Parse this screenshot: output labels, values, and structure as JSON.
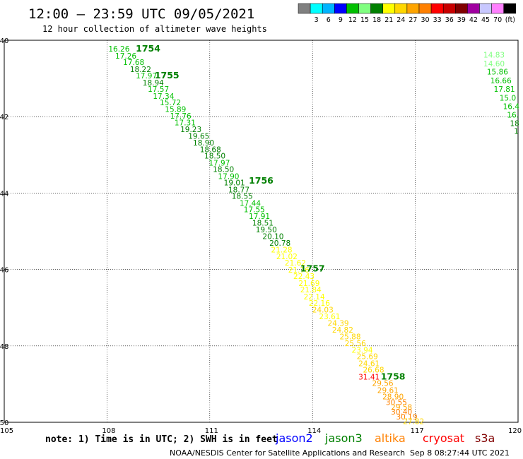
{
  "title": "12:00 – 23:59 UTC 09/05/2021",
  "subtitle": "12 hour collection of altimeter wave heights",
  "colorbar": {
    "colors": [
      "#808080",
      "#00ffff",
      "#00b4ff",
      "#0000ff",
      "#00c000",
      "#80ff80",
      "#008000",
      "#ffff00",
      "#ffd700",
      "#ffa500",
      "#ff8000",
      "#ff0000",
      "#c80000",
      "#800000",
      "#a000a0",
      "#c8c8ff",
      "#ff80ff",
      "#000000"
    ],
    "labels": [
      "3",
      "6",
      "9",
      "12",
      "15",
      "18",
      "21",
      "24",
      "27",
      "30",
      "33",
      "36",
      "39",
      "42",
      "45",
      "70"
    ],
    "unit": "(ft)"
  },
  "chart_data": {
    "type": "scatter",
    "title": "12:00 – 23:59 UTC 09/05/2021",
    "subtitle": "12 hour collection of altimeter wave heights",
    "xlim": [
      105,
      120
    ],
    "ylim": [
      -50,
      -40
    ],
    "xticks": [
      "105",
      "108",
      "111",
      "114",
      "117",
      "120"
    ],
    "yticks": [
      "-40",
      "-42",
      "-44",
      "-46",
      "-48",
      "-50"
    ],
    "grid": true,
    "series": [
      {
        "name": "track1",
        "points": [
          {
            "x": 108.35,
            "y": -40.3,
            "v": "16.26",
            "c": "#00c000"
          },
          {
            "x": 108.55,
            "y": -40.48,
            "v": "17.26",
            "c": "#00c000"
          },
          {
            "x": 108.78,
            "y": -40.65,
            "v": "17.68",
            "c": "#00c000"
          },
          {
            "x": 108.98,
            "y": -40.83,
            "v": "18.22",
            "c": "#008000"
          },
          {
            "x": 109.15,
            "y": -41.0,
            "v": "17.97",
            "c": "#00c000"
          },
          {
            "x": 109.35,
            "y": -41.18,
            "v": "18.94",
            "c": "#008000"
          },
          {
            "x": 109.5,
            "y": -41.35,
            "v": "17.57",
            "c": "#00c000"
          },
          {
            "x": 109.65,
            "y": -41.53,
            "v": "17.34",
            "c": "#00c000"
          },
          {
            "x": 109.85,
            "y": -41.7,
            "v": "15.72",
            "c": "#00c000"
          },
          {
            "x": 110.0,
            "y": -41.88,
            "v": "15.89",
            "c": "#00c000"
          },
          {
            "x": 110.15,
            "y": -42.05,
            "v": "17.76",
            "c": "#00c000"
          },
          {
            "x": 110.28,
            "y": -42.23,
            "v": "17.31",
            "c": "#00c000"
          },
          {
            "x": 110.45,
            "y": -42.4,
            "v": "19.23",
            "c": "#008000"
          },
          {
            "x": 110.68,
            "y": -42.58,
            "v": "19.65",
            "c": "#008000"
          },
          {
            "x": 110.82,
            "y": -42.75,
            "v": "18.90",
            "c": "#008000"
          },
          {
            "x": 111.02,
            "y": -42.93,
            "v": "18.68",
            "c": "#008000"
          },
          {
            "x": 111.15,
            "y": -43.1,
            "v": "18.50",
            "c": "#008000"
          },
          {
            "x": 111.28,
            "y": -43.28,
            "v": "17.97",
            "c": "#00c000"
          },
          {
            "x": 111.4,
            "y": -43.45,
            "v": "18.50",
            "c": "#008000"
          },
          {
            "x": 111.55,
            "y": -43.63,
            "v": "17.90",
            "c": "#00c000"
          },
          {
            "x": 111.72,
            "y": -43.8,
            "v": "19.01",
            "c": "#008000"
          },
          {
            "x": 111.85,
            "y": -43.98,
            "v": "18.77",
            "c": "#008000"
          },
          {
            "x": 111.95,
            "y": -44.15,
            "v": "18.55",
            "c": "#008000"
          },
          {
            "x": 112.18,
            "y": -44.33,
            "v": "17.44",
            "c": "#00c000"
          },
          {
            "x": 112.3,
            "y": -44.5,
            "v": "17.55",
            "c": "#00c000"
          },
          {
            "x": 112.45,
            "y": -44.68,
            "v": "17.91",
            "c": "#00c000"
          },
          {
            "x": 112.55,
            "y": -44.85,
            "v": "18.51",
            "c": "#008000"
          },
          {
            "x": 112.65,
            "y": -45.03,
            "v": "19.50",
            "c": "#008000"
          },
          {
            "x": 112.85,
            "y": -45.2,
            "v": "20.10",
            "c": "#008000"
          },
          {
            "x": 113.05,
            "y": -45.38,
            "v": "20.78",
            "c": "#008000"
          },
          {
            "x": 113.1,
            "y": -45.55,
            "v": "21.28",
            "c": "#ffff00"
          },
          {
            "x": 113.25,
            "y": -45.73,
            "v": "21.02",
            "c": "#ffff00"
          },
          {
            "x": 113.5,
            "y": -45.9,
            "v": "21.62",
            "c": "#ffff00"
          },
          {
            "x": 113.6,
            "y": -46.08,
            "v": "21.76",
            "c": "#ffff00"
          },
          {
            "x": 113.75,
            "y": -46.25,
            "v": "22.43",
            "c": "#ffff00"
          },
          {
            "x": 113.9,
            "y": -46.43,
            "v": "21.69",
            "c": "#ffff00"
          },
          {
            "x": 113.95,
            "y": -46.6,
            "v": "21.84",
            "c": "#ffff00"
          },
          {
            "x": 114.05,
            "y": -46.78,
            "v": "22.14",
            "c": "#ffff00"
          },
          {
            "x": 114.2,
            "y": -46.95,
            "v": "22.16",
            "c": "#ffff00"
          },
          {
            "x": 114.3,
            "y": -47.13,
            "v": "24.03",
            "c": "#ffd700"
          },
          {
            "x": 114.5,
            "y": -47.3,
            "v": "23.61",
            "c": "#ffff00"
          },
          {
            "x": 114.75,
            "y": -47.48,
            "v": "24.39",
            "c": "#ffd700"
          },
          {
            "x": 114.88,
            "y": -47.65,
            "v": "24.82",
            "c": "#ffd700"
          },
          {
            "x": 115.1,
            "y": -47.83,
            "v": "25.88",
            "c": "#ffd700"
          },
          {
            "x": 115.25,
            "y": -48.0,
            "v": "25.56",
            "c": "#ffd700"
          },
          {
            "x": 115.45,
            "y": -48.18,
            "v": "23.94",
            "c": "#ffff00"
          },
          {
            "x": 115.6,
            "y": -48.35,
            "v": "25.69",
            "c": "#ffd700"
          },
          {
            "x": 115.65,
            "y": -48.53,
            "v": "24.61",
            "c": "#ffd700"
          },
          {
            "x": 115.78,
            "y": -48.7,
            "v": "26.68",
            "c": "#ffd700"
          },
          {
            "x": 115.65,
            "y": -48.88,
            "v": "31.41",
            "c": "#ff0000"
          },
          {
            "x": 116.05,
            "y": -49.05,
            "v": "29.56",
            "c": "#ffa500"
          },
          {
            "x": 116.2,
            "y": -49.23,
            "v": "29.61",
            "c": "#ffa500"
          },
          {
            "x": 116.35,
            "y": -49.4,
            "v": "28.90",
            "c": "#ffa500"
          },
          {
            "x": 116.45,
            "y": -49.55,
            "v": "30.55",
            "c": "#ff8000"
          },
          {
            "x": 116.6,
            "y": -49.68,
            "v": "29.58",
            "c": "#ffa500"
          },
          {
            "x": 116.6,
            "y": -49.8,
            "v": "30.40",
            "c": "#ff8000"
          },
          {
            "x": 116.75,
            "y": -49.93,
            "v": "30.19",
            "c": "#ff8000"
          },
          {
            "x": 116.95,
            "y": -50.05,
            "v": "27.82",
            "c": "#ffd700"
          }
        ]
      },
      {
        "name": "track2",
        "points": [
          {
            "x": 119.3,
            "y": -40.45,
            "v": "14.83",
            "c": "#80ff80"
          },
          {
            "x": 119.3,
            "y": -40.68,
            "v": "14.60",
            "c": "#80ff80"
          },
          {
            "x": 119.4,
            "y": -40.9,
            "v": "15.86",
            "c": "#00c000"
          },
          {
            "x": 119.5,
            "y": -41.13,
            "v": "16.66",
            "c": "#00c000"
          },
          {
            "x": 119.6,
            "y": -41.35,
            "v": "17.81",
            "c": "#00c000"
          },
          {
            "x": 119.7,
            "y": -41.58,
            "v": "15.0",
            "c": "#00c000"
          },
          {
            "x": 119.8,
            "y": -41.8,
            "v": "16.4",
            "c": "#00c000"
          },
          {
            "x": 119.85,
            "y": -42.02,
            "v": "16.",
            "c": "#00c000"
          },
          {
            "x": 119.9,
            "y": -42.25,
            "v": "18",
            "c": "#008000"
          },
          {
            "x": 119.95,
            "y": -42.45,
            "v": "1",
            "c": "#008000"
          }
        ]
      }
    ],
    "hour_labels": [
      {
        "x": 109.2,
        "y": -40.3,
        "text": "1754"
      },
      {
        "x": 109.75,
        "y": -41.0,
        "text": "1755"
      },
      {
        "x": 112.5,
        "y": -43.75,
        "text": "1756"
      },
      {
        "x": 114.0,
        "y": -46.05,
        "text": "1757"
      },
      {
        "x": 116.35,
        "y": -48.88,
        "text": "1758"
      }
    ]
  },
  "note": "note: 1) Time is in UTC; 2) SWH is in feet",
  "satellites": [
    {
      "name": "jason2",
      "color": "#0000ff"
    },
    {
      "name": "jason3",
      "color": "#008000"
    },
    {
      "name": "altika",
      "color": "#ff8000"
    },
    {
      "name": "cryosat",
      "color": "#ff0000"
    },
    {
      "name": "s3a",
      "color": "#800000"
    }
  ],
  "credit": "NOAA/NESDIS Center for Satellite Applications and Research",
  "timestamp": "Sep  8 08:27:44 UTC 2021"
}
